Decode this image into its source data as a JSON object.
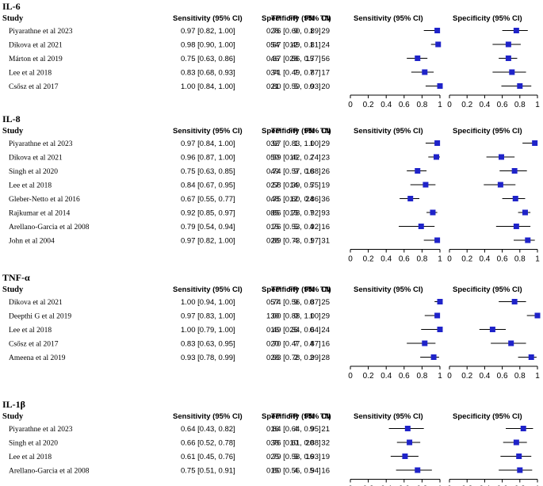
{
  "chart_data": [
    {
      "type": "forest",
      "title": "IL-6",
      "columns": [
        "Study",
        "TP",
        "FP",
        "FN",
        "TN",
        "Sensitivity (95% CI)",
        "Specificity (95% CI)",
        "Sensitivity (95% CI)",
        "Specificity (95% CI)"
      ],
      "xlim": [
        0,
        1
      ],
      "ticks": [
        "0",
        "0.2",
        "0.4",
        "0.6",
        "0.8",
        "1"
      ],
      "studies": [
        {
          "study": "Piyarathne et al 2023",
          "tp": "28",
          "fp": "9",
          "fn": "1",
          "tn": "29",
          "sens_text": "0.97 [0.82, 1.00]",
          "spec_text": "0.76 [0.60, 0.89]",
          "sens": [
            0.97,
            0.82,
            1.0
          ],
          "spec": [
            0.76,
            0.6,
            0.89
          ]
        },
        {
          "study": "Dikova et al 2021",
          "tp": "54",
          "fp": "12",
          "fn": "1",
          "tn": "24",
          "sens_text": "0.98 [0.90, 1.00]",
          "spec_text": "0.67 [0.49, 0.81]",
          "sens": [
            0.98,
            0.9,
            1.0
          ],
          "spec": [
            0.67,
            0.49,
            0.81
          ]
        },
        {
          "study": "Márton et al 2019",
          "tp": "46",
          "fp": "28",
          "fn": "15",
          "tn": "56",
          "sens_text": "0.75 [0.63, 0.86]",
          "spec_text": "0.67 [0.56, 0.77]",
          "sens": [
            0.75,
            0.63,
            0.86
          ],
          "spec": [
            0.67,
            0.56,
            0.77
          ]
        },
        {
          "study": "Lee et al 2018",
          "tp": "34",
          "fp": "7",
          "fn": "7",
          "tn": "17",
          "sens_text": "0.83 [0.68, 0.93]",
          "spec_text": "0.71 [0.49, 0.87]",
          "sens": [
            0.83,
            0.68,
            0.93
          ],
          "spec": [
            0.71,
            0.49,
            0.87
          ]
        },
        {
          "study": "Csősz et al 2017",
          "tp": "21",
          "fp": "5",
          "fn": "0",
          "tn": "20",
          "sens_text": "1.00 [0.84, 1.00]",
          "spec_text": "0.80 [0.59, 0.93]",
          "sens": [
            1.0,
            0.84,
            1.0
          ],
          "spec": [
            0.8,
            0.59,
            0.93
          ]
        }
      ]
    },
    {
      "type": "forest",
      "title": "IL-8",
      "columns": [
        "Study",
        "TP",
        "FP",
        "FN",
        "TN",
        "Sensitivity (95% CI)",
        "Specificity (95% CI)",
        "Sensitivity (95% CI)",
        "Specificity (95% CI)"
      ],
      "xlim": [
        0,
        1
      ],
      "ticks": [
        "0",
        "0.2",
        "0.4",
        "0.6",
        "0.8",
        "1"
      ],
      "studies": [
        {
          "study": "Piyarathne et al 2023",
          "tp": "32",
          "fp": "1",
          "fn": "1",
          "tn": "29",
          "sens_text": "0.97 [0.84, 1.00]",
          "spec_text": "0.97 [0.83, 1.00]",
          "sens": [
            0.97,
            0.84,
            1.0
          ],
          "spec": [
            0.97,
            0.83,
            1.0
          ]
        },
        {
          "study": "Dikova et al 2021",
          "tp": "50",
          "fp": "16",
          "fn": "2",
          "tn": "23",
          "sens_text": "0.96 [0.87, 1.00]",
          "spec_text": "0.59 [0.42, 0.74]",
          "sens": [
            0.96,
            0.87,
            1.0
          ],
          "spec": [
            0.59,
            0.42,
            0.74
          ]
        },
        {
          "study": "Singh et al 2020",
          "tp": "49",
          "fp": "9",
          "fn": "16",
          "tn": "26",
          "sens_text": "0.75 [0.63, 0.85]",
          "spec_text": "0.74 [0.57, 0.88]",
          "sens": [
            0.75,
            0.63,
            0.85
          ],
          "spec": [
            0.74,
            0.57,
            0.88
          ]
        },
        {
          "study": "Lee et al 2018",
          "tp": "27",
          "fp": "14",
          "fn": "5",
          "tn": "19",
          "sens_text": "0.84 [0.67, 0.95]",
          "spec_text": "0.58 [0.39, 0.75]",
          "sens": [
            0.84,
            0.67,
            0.95
          ],
          "spec": [
            0.58,
            0.39,
            0.75
          ]
        },
        {
          "study": "Gleber-Netto et al 2016",
          "tp": "48",
          "fp": "12",
          "fn": "24",
          "tn": "36",
          "sens_text": "0.67 [0.55, 0.77]",
          "spec_text": "0.75 [0.60, 0.86]",
          "sens": [
            0.67,
            0.55,
            0.77
          ],
          "spec": [
            0.75,
            0.6,
            0.86
          ]
        },
        {
          "study": "Rajkumar et al 2014",
          "tp": "85",
          "fp": "15",
          "fn": "7",
          "tn": "93",
          "sens_text": "0.92 [0.85, 0.97]",
          "spec_text": "0.86 [0.78, 0.92]",
          "sens": [
            0.92,
            0.85,
            0.97
          ],
          "spec": [
            0.86,
            0.78,
            0.92
          ]
        },
        {
          "study": "Arellano-Garcia et al 2008",
          "tp": "15",
          "fp": "5",
          "fn": "4",
          "tn": "16",
          "sens_text": "0.79 [0.54, 0.94]",
          "spec_text": "0.76 [0.53, 0.92]",
          "sens": [
            0.79,
            0.54,
            0.94
          ],
          "spec": [
            0.76,
            0.53,
            0.92
          ]
        },
        {
          "study": "John et al 2004",
          "tp": "28",
          "fp": "4",
          "fn": "1",
          "tn": "31",
          "sens_text": "0.97 [0.82, 1.00]",
          "spec_text": "0.89 [0.73, 0.97]",
          "sens": [
            0.97,
            0.82,
            1.0
          ],
          "spec": [
            0.89,
            0.73,
            0.97
          ]
        }
      ]
    },
    {
      "type": "forest",
      "title": "TNF-α",
      "columns": [
        "Study",
        "TP",
        "FP",
        "FN",
        "TN",
        "Sensitivity (95% CI)",
        "Specificity (95% CI)",
        "Sensitivity (95% CI)",
        "Specificity (95% CI)"
      ],
      "xlim": [
        0,
        1
      ],
      "ticks": [
        "0",
        "0.2",
        "0.4",
        "0.6",
        "0.8",
        "1"
      ],
      "studies": [
        {
          "study": "Dikova et al 2021",
          "tp": "57",
          "fp": "9",
          "fn": "0",
          "tn": "25",
          "sens_text": "1.00 [0.94, 1.00]",
          "spec_text": "0.74 [0.56, 0.87]",
          "sens": [
            1.0,
            0.94,
            1.0
          ],
          "spec": [
            0.74,
            0.56,
            0.87
          ]
        },
        {
          "study": "Deepthi G et al 2019",
          "tp": "30",
          "fp": "0",
          "fn": "1",
          "tn": "29",
          "sens_text": "0.97 [0.83, 1.00]",
          "spec_text": "1.00 [0.88, 1.00]",
          "sens": [
            0.97,
            0.83,
            1.0
          ],
          "spec": [
            1.0,
            0.88,
            1.0
          ]
        },
        {
          "study": "Lee et al 2018",
          "tp": "16",
          "fp": "25",
          "fn": "0",
          "tn": "24",
          "sens_text": "1.00 [0.79, 1.00]",
          "spec_text": "0.49 [0.34, 0.64]",
          "sens": [
            1.0,
            0.79,
            1.0
          ],
          "spec": [
            0.49,
            0.34,
            0.64
          ]
        },
        {
          "study": "Csősz et al 2017",
          "tp": "20",
          "fp": "7",
          "fn": "4",
          "tn": "16",
          "sens_text": "0.83 [0.63, 0.95]",
          "spec_text": "0.70 [0.47, 0.87]",
          "sens": [
            0.83,
            0.63,
            0.95
          ],
          "spec": [
            0.7,
            0.47,
            0.87
          ]
        },
        {
          "study": "Ameena et al 2019",
          "tp": "28",
          "fp": "2",
          "fn": "2",
          "tn": "28",
          "sens_text": "0.93 [0.78, 0.99]",
          "spec_text": "0.93 [0.78, 0.99]",
          "sens": [
            0.93,
            0.78,
            0.99
          ],
          "spec": [
            0.93,
            0.78,
            0.99
          ]
        }
      ]
    },
    {
      "type": "forest",
      "title": "IL-1β",
      "columns": [
        "Study",
        "TP",
        "FP",
        "FN",
        "TN",
        "Sensitivity (95% CI)",
        "Specificity (95% CI)",
        "Sensitivity (95% CI)",
        "Specificity (95% CI)"
      ],
      "xlim": [
        0,
        1
      ],
      "ticks": [
        "0",
        "0.2",
        "0.4",
        "0.6",
        "0.8",
        "1"
      ],
      "studies": [
        {
          "study": "Piyarathne et al 2023",
          "tp": "16",
          "fp": "4",
          "fn": "9",
          "tn": "21",
          "sens_text": "0.64 [0.43, 0.82]",
          "spec_text": "0.84 [0.64, 0.95]",
          "sens": [
            0.64,
            0.43,
            0.82
          ],
          "spec": [
            0.84,
            0.64,
            0.95
          ]
        },
        {
          "study": "Singh et al 2020",
          "tp": "38",
          "fp": "10",
          "fn": "20",
          "tn": "32",
          "sens_text": "0.66 [0.52, 0.78]",
          "spec_text": "0.76 [0.61, 0.88]",
          "sens": [
            0.66,
            0.52,
            0.78
          ],
          "spec": [
            0.76,
            0.61,
            0.88
          ]
        },
        {
          "study": "Lee et al 2018",
          "tp": "25",
          "fp": "5",
          "fn": "16",
          "tn": "19",
          "sens_text": "0.61 [0.45, 0.76]",
          "spec_text": "0.79 [0.58, 0.93]",
          "sens": [
            0.61,
            0.45,
            0.76
          ],
          "spec": [
            0.79,
            0.58,
            0.93
          ]
        },
        {
          "study": "Arellano-Garcia et al 2008",
          "tp": "15",
          "fp": "4",
          "fn": "5",
          "tn": "16",
          "sens_text": "0.75 [0.51, 0.91]",
          "spec_text": "0.80 [0.56, 0.94]",
          "sens": [
            0.75,
            0.51,
            0.91
          ],
          "spec": [
            0.8,
            0.56,
            0.94
          ]
        }
      ]
    }
  ],
  "colors": {
    "marker": "#1f23c9",
    "text": "#000000",
    "background": "#ffffff"
  }
}
